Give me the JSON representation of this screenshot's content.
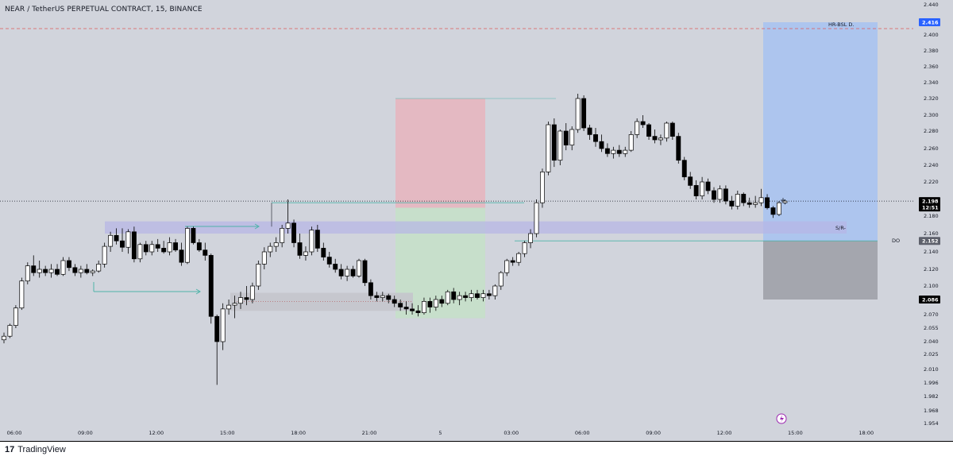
{
  "header": {
    "symbol_title": "NEAR / TetherUS PERPETUAL CONTRACT, 15, BINANCE"
  },
  "footer": {
    "brand_mark": "17",
    "brand_name": "TradingView"
  },
  "colors": {
    "background": "#d1d4dc",
    "candle_up": "#ffffff",
    "candle_down": "#000000",
    "stop_zone": "#e8b4bd",
    "profit_zone": "#c5e1c8",
    "target_zone": "#a9c3ef",
    "loss_zone": "#9ea1a8",
    "sr_band": "#b7b5e6",
    "lower_band": "#c4c5cc",
    "teal_line": "#4fb3a9",
    "red_dashed": "#e05a5a",
    "current_price_tag": "#000000",
    "target_tag": "#2962ff",
    "alert_icon": "#9c27b0"
  },
  "chart_data": {
    "type": "candlestick",
    "title": "NEAR / TetherUS PERPETUAL CONTRACT, 15, BINANCE",
    "interval": "15",
    "y_ticks": [
      "1.954",
      "1.968",
      "1.982",
      "1.996",
      "2.010",
      "2.025",
      "2.040",
      "2.055",
      "2.070",
      "2.086",
      "2.100",
      "2.120",
      "2.140",
      "2.160",
      "2.180",
      "2.200",
      "2.220",
      "2.240",
      "2.260",
      "2.280",
      "2.300",
      "2.320",
      "2.340",
      "2.360",
      "2.380",
      "2.400",
      "2.416",
      "2.440"
    ],
    "x_ticks": [
      {
        "label": "06:00",
        "idx": 0
      },
      {
        "label": "09:00",
        "idx": 12
      },
      {
        "label": "12:00",
        "idx": 24
      },
      {
        "label": "15:00",
        "idx": 36
      },
      {
        "label": "18:00",
        "idx": 48
      },
      {
        "label": "21:00",
        "idx": 60
      },
      {
        "label": "5",
        "idx": 72
      },
      {
        "label": "03:00",
        "idx": 84
      },
      {
        "label": "06:00",
        "idx": 96
      },
      {
        "label": "09:00",
        "idx": 108
      },
      {
        "label": "12:00",
        "idx": 120
      },
      {
        "label": "15:00",
        "idx": 132
      },
      {
        "label": "18:00",
        "idx": 144
      }
    ],
    "candles": [
      [
        2.042,
        2.05,
        2.038,
        2.046
      ],
      [
        2.046,
        2.06,
        2.044,
        2.058
      ],
      [
        2.058,
        2.08,
        2.055,
        2.077
      ],
      [
        2.077,
        2.11,
        2.075,
        2.106
      ],
      [
        2.106,
        2.128,
        2.102,
        2.124
      ],
      [
        2.124,
        2.136,
        2.112,
        2.116
      ],
      [
        2.116,
        2.13,
        2.11,
        2.12
      ],
      [
        2.12,
        2.124,
        2.112,
        2.116
      ],
      [
        2.116,
        2.126,
        2.11,
        2.12
      ],
      [
        2.12,
        2.126,
        2.112,
        2.114
      ],
      [
        2.114,
        2.134,
        2.112,
        2.13
      ],
      [
        2.13,
        2.134,
        2.118,
        2.122
      ],
      [
        2.122,
        2.126,
        2.112,
        2.116
      ],
      [
        2.116,
        2.124,
        2.11,
        2.12
      ],
      [
        2.12,
        2.126,
        2.114,
        2.116
      ],
      [
        2.116,
        2.12,
        2.112,
        2.118
      ],
      [
        2.118,
        2.13,
        2.116,
        2.126
      ],
      [
        2.126,
        2.15,
        2.122,
        2.146
      ],
      [
        2.146,
        2.162,
        2.14,
        2.158
      ],
      [
        2.158,
        2.166,
        2.148,
        2.152
      ],
      [
        2.152,
        2.166,
        2.14,
        2.145
      ],
      [
        2.145,
        2.165,
        2.138,
        2.162
      ],
      [
        2.162,
        2.168,
        2.128,
        2.132
      ],
      [
        2.132,
        2.15,
        2.128,
        2.148
      ],
      [
        2.148,
        2.152,
        2.136,
        2.14
      ],
      [
        2.14,
        2.152,
        2.136,
        2.148
      ],
      [
        2.148,
        2.154,
        2.14,
        2.144
      ],
      [
        2.144,
        2.152,
        2.138,
        2.14
      ],
      [
        2.14,
        2.156,
        2.136,
        2.15
      ],
      [
        2.15,
        2.154,
        2.14,
        2.142
      ],
      [
        2.142,
        2.15,
        2.124,
        2.128
      ],
      [
        2.128,
        2.168,
        2.126,
        2.166
      ],
      [
        2.166,
        2.168,
        2.148,
        2.15
      ],
      [
        2.15,
        2.154,
        2.14,
        2.142
      ],
      [
        2.142,
        2.15,
        2.13,
        2.136
      ],
      [
        2.136,
        2.138,
        2.06,
        2.068
      ],
      [
        2.068,
        2.07,
        1.994,
        2.04
      ],
      [
        2.04,
        2.082,
        2.03,
        2.076
      ],
      [
        2.076,
        2.086,
        2.07,
        2.08
      ],
      [
        2.08,
        2.09,
        2.066,
        2.082
      ],
      [
        2.082,
        2.094,
        2.076,
        2.088
      ],
      [
        2.088,
        2.1,
        2.08,
        2.086
      ],
      [
        2.086,
        2.104,
        2.082,
        2.1
      ],
      [
        2.1,
        2.13,
        2.096,
        2.126
      ],
      [
        2.126,
        2.145,
        2.12,
        2.14
      ],
      [
        2.14,
        2.15,
        2.134,
        2.146
      ],
      [
        2.146,
        2.156,
        2.14,
        2.15
      ],
      [
        2.15,
        2.17,
        2.145,
        2.166
      ],
      [
        2.166,
        2.2,
        2.16,
        2.172
      ],
      [
        2.172,
        2.176,
        2.145,
        2.15
      ],
      [
        2.15,
        2.16,
        2.132,
        2.136
      ],
      [
        2.136,
        2.146,
        2.13,
        2.14
      ],
      [
        2.14,
        2.168,
        2.136,
        2.164
      ],
      [
        2.164,
        2.17,
        2.14,
        2.144
      ],
      [
        2.144,
        2.15,
        2.13,
        2.134
      ],
      [
        2.134,
        2.14,
        2.122,
        2.126
      ],
      [
        2.126,
        2.132,
        2.116,
        2.12
      ],
      [
        2.12,
        2.126,
        2.108,
        2.112
      ],
      [
        2.112,
        2.124,
        2.106,
        2.12
      ],
      [
        2.12,
        2.124,
        2.11,
        2.112
      ],
      [
        2.112,
        2.132,
        2.11,
        2.13
      ],
      [
        2.13,
        2.132,
        2.1,
        2.104
      ],
      [
        2.104,
        2.108,
        2.086,
        2.09
      ],
      [
        2.09,
        2.094,
        2.084,
        2.088
      ],
      [
        2.088,
        2.094,
        2.084,
        2.09
      ],
      [
        2.09,
        2.092,
        2.082,
        2.086
      ],
      [
        2.086,
        2.09,
        2.078,
        2.082
      ],
      [
        2.082,
        2.086,
        2.074,
        2.078
      ],
      [
        2.078,
        2.084,
        2.07,
        2.076
      ],
      [
        2.076,
        2.082,
        2.07,
        2.074
      ],
      [
        2.074,
        2.08,
        2.068,
        2.072
      ],
      [
        2.072,
        2.088,
        2.07,
        2.084
      ],
      [
        2.084,
        2.088,
        2.072,
        2.078
      ],
      [
        2.078,
        2.09,
        2.074,
        2.086
      ],
      [
        2.086,
        2.09,
        2.078,
        2.082
      ],
      [
        2.082,
        2.096,
        2.08,
        2.094
      ],
      [
        2.094,
        2.098,
        2.082,
        2.086
      ],
      [
        2.086,
        2.094,
        2.08,
        2.09
      ],
      [
        2.09,
        2.094,
        2.084,
        2.088
      ],
      [
        2.088,
        2.096,
        2.084,
        2.092
      ],
      [
        2.092,
        2.096,
        2.086,
        2.088
      ],
      [
        2.088,
        2.096,
        2.084,
        2.092
      ],
      [
        2.092,
        2.096,
        2.086,
        2.09
      ],
      [
        2.09,
        2.102,
        2.086,
        2.1
      ],
      [
        2.1,
        2.118,
        2.096,
        2.116
      ],
      [
        2.116,
        2.132,
        2.112,
        2.13
      ],
      [
        2.13,
        2.134,
        2.124,
        2.128
      ],
      [
        2.128,
        2.14,
        2.124,
        2.138
      ],
      [
        2.138,
        2.152,
        2.134,
        2.15
      ],
      [
        2.15,
        2.165,
        2.144,
        2.16
      ],
      [
        2.16,
        2.2,
        2.156,
        2.196
      ],
      [
        2.196,
        2.236,
        2.19,
        2.232
      ],
      [
        2.232,
        2.292,
        2.228,
        2.288
      ],
      [
        2.288,
        2.296,
        2.238,
        2.246
      ],
      [
        2.246,
        2.282,
        2.24,
        2.28
      ],
      [
        2.28,
        2.29,
        2.258,
        2.264
      ],
      [
        2.264,
        2.286,
        2.258,
        2.282
      ],
      [
        2.282,
        2.326,
        2.278,
        2.32
      ],
      [
        2.32,
        2.324,
        2.28,
        2.284
      ],
      [
        2.284,
        2.288,
        2.27,
        2.276
      ],
      [
        2.276,
        2.284,
        2.262,
        2.268
      ],
      [
        2.268,
        2.276,
        2.256,
        2.26
      ],
      [
        2.26,
        2.266,
        2.25,
        2.254
      ],
      [
        2.254,
        2.262,
        2.248,
        2.258
      ],
      [
        2.258,
        2.264,
        2.25,
        2.254
      ],
      [
        2.254,
        2.262,
        2.25,
        2.258
      ],
      [
        2.258,
        2.28,
        2.256,
        2.276
      ],
      [
        2.276,
        2.296,
        2.272,
        2.292
      ],
      [
        2.292,
        2.3,
        2.284,
        2.288
      ],
      [
        2.288,
        2.29,
        2.27,
        2.274
      ],
      [
        2.274,
        2.282,
        2.266,
        2.27
      ],
      [
        2.27,
        2.276,
        2.264,
        2.272
      ],
      [
        2.272,
        2.292,
        2.268,
        2.29
      ],
      [
        2.29,
        2.292,
        2.27,
        2.274
      ],
      [
        2.274,
        2.278,
        2.242,
        2.246
      ],
      [
        2.246,
        2.25,
        2.222,
        2.226
      ],
      [
        2.226,
        2.232,
        2.212,
        2.216
      ],
      [
        2.216,
        2.222,
        2.2,
        2.204
      ],
      [
        2.204,
        2.226,
        2.2,
        2.22
      ],
      [
        2.22,
        2.224,
        2.206,
        2.21
      ],
      [
        2.21,
        2.214,
        2.196,
        2.2
      ],
      [
        2.2,
        2.216,
        2.196,
        2.212
      ],
      [
        2.212,
        2.216,
        2.194,
        2.198
      ],
      [
        2.198,
        2.204,
        2.188,
        2.192
      ],
      [
        2.192,
        2.21,
        2.188,
        2.206
      ],
      [
        2.206,
        2.208,
        2.192,
        2.196
      ],
      [
        2.196,
        2.202,
        2.19,
        2.194
      ],
      [
        2.194,
        2.204,
        2.19,
        2.196
      ],
      [
        2.196,
        2.212,
        2.192,
        2.202
      ],
      [
        2.202,
        2.206,
        2.188,
        2.19
      ],
      [
        2.19,
        2.192,
        2.178,
        2.182
      ],
      [
        2.182,
        2.198,
        2.18,
        2.196
      ],
      [
        2.196,
        2.2,
        2.194,
        2.198
      ]
    ],
    "drawings": {
      "short_stop_zone": {
        "price_top": 2.32,
        "price_bottom": 2.19
      },
      "short_profit_zone": {
        "price_top": 2.19,
        "price_bottom": 2.066
      },
      "long_target_zone": {
        "price_top": 2.416,
        "price_bottom": 2.152
      },
      "long_loss_zone": {
        "price_top": 2.152,
        "price_bottom": 2.086
      },
      "sr_band": {
        "price_top": 2.174,
        "price_bottom": 2.16
      },
      "lower_band": {
        "price_top": 2.093,
        "price_bottom": 2.074
      },
      "red_dashed_level": 2.408,
      "current_price_level": 2.198,
      "do_level": 2.152
    },
    "annotations": {
      "hr_bsl": "HR-BSL D.",
      "sr": "S/R-",
      "do": "DO"
    },
    "price_tags": {
      "current": "2.198",
      "countdown": "12:51",
      "target": "2.416",
      "do_price": "2.152",
      "stop_price": "2.086"
    },
    "grid": false,
    "legend": "none"
  }
}
